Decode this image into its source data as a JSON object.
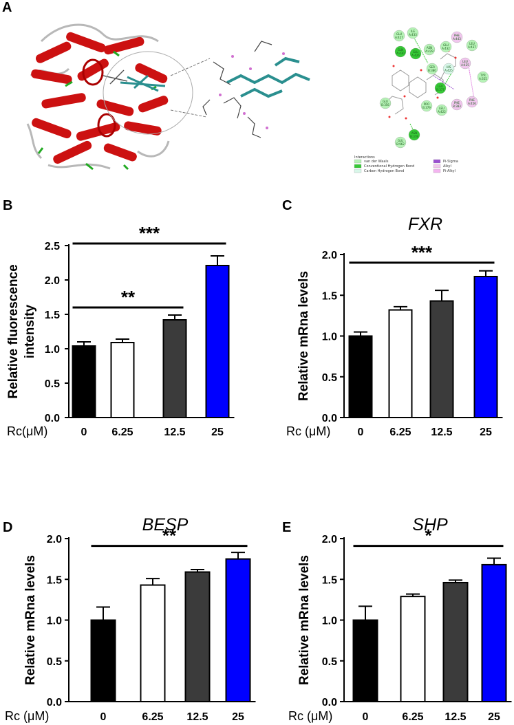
{
  "panel_a": {
    "letter": "A",
    "legend": {
      "title": "Interactions",
      "items": [
        {
          "label": "van der Waals",
          "color": "#b6f2b6"
        },
        {
          "label": "Conventional Hydrogen Bond",
          "color": "#36c936"
        },
        {
          "label": "Carbon Hydrogen Bond",
          "color": "#d8f7e9"
        },
        {
          "label": "Pi-Sigma",
          "color": "#9b4fd1"
        },
        {
          "label": "Alkyl",
          "color": "#f1c6ee"
        },
        {
          "label": "Pi-Alkyl",
          "color": "#f4b4f0"
        }
      ]
    },
    "residues": [
      {
        "label": "GLU A:427",
        "color": "#b6f2b6"
      },
      {
        "label": "ILE A:433",
        "color": "#b6f2b6"
      },
      {
        "label": "GLN A:430",
        "color": "#36c936"
      },
      {
        "label": "GLU A:426",
        "color": "#36c936"
      },
      {
        "label": "ASN A:429",
        "color": "#b6f2b6"
      },
      {
        "label": "GLU A:432",
        "color": "#b6f2b6"
      },
      {
        "label": "PHE A:443",
        "color": "#f1c6ee"
      },
      {
        "label": "LEU A:437",
        "color": "#b6f2b6"
      },
      {
        "label": "SER B:380",
        "color": "#b6f2b6"
      },
      {
        "label": "HIS A:425",
        "color": "#d8f7e9"
      },
      {
        "label": "LEU A:425",
        "color": "#f1c6ee"
      },
      {
        "label": "TYR A:355",
        "color": "#b6f2b6"
      },
      {
        "label": "LEU B:377",
        "color": "#36c936"
      },
      {
        "label": "PHE B:383",
        "color": "#f1c6ee"
      },
      {
        "label": "PHE A:456",
        "color": "#f1c6ee"
      },
      {
        "label": "LEU A:422",
        "color": "#b6f2b6"
      },
      {
        "label": "PRO B:379",
        "color": "#b6f2b6"
      },
      {
        "label": "ASN B:378",
        "color": "#36c936"
      },
      {
        "label": "GLU B:962",
        "color": "#b6f2b6"
      },
      {
        "label": "GLU B:356",
        "color": "#b6f2b6"
      }
    ]
  },
  "chart_data": [
    {
      "panel": "B",
      "type": "bar",
      "title": "",
      "xlabel": "Rc(μM)",
      "ylabel": "Relative fluorescence intensity",
      "ylabel_lines": [
        "Relative fluorescence",
        "intensity"
      ],
      "categories": [
        "0",
        "6.25",
        "12.5",
        "25"
      ],
      "values": [
        1.04,
        1.09,
        1.42,
        2.21
      ],
      "errors": [
        0.06,
        0.05,
        0.07,
        0.14
      ],
      "colors": [
        "#000000",
        "#ffffff",
        "#3b3b3b",
        "#0000ff"
      ],
      "ylim": [
        0,
        2.5
      ],
      "yticks": [
        "0.0",
        "0.5",
        "1.0",
        "1.5",
        "2.0",
        "2.5"
      ],
      "significance": [
        {
          "from": 0,
          "to": 2,
          "label": "**",
          "y": 1.6
        },
        {
          "from": 0,
          "to": 3,
          "label": "***",
          "y": 2.53
        }
      ]
    },
    {
      "panel": "C",
      "type": "bar",
      "title": "FXR",
      "xlabel": "Rc (μM)",
      "ylabel": "Relative mRna levels",
      "ylabel_lines": [
        "Relative mRna levels"
      ],
      "categories": [
        "0",
        "6.25",
        "12.5",
        "25"
      ],
      "values": [
        1.0,
        1.32,
        1.43,
        1.73
      ],
      "errors": [
        0.05,
        0.04,
        0.13,
        0.07
      ],
      "colors": [
        "#000000",
        "#ffffff",
        "#3b3b3b",
        "#0000ff"
      ],
      "ylim": [
        0,
        2.0
      ],
      "yticks": [
        "0.0",
        "0.5",
        "1.0",
        "1.5",
        "2.0"
      ],
      "significance": [
        {
          "from": 0,
          "to": 3,
          "label": "***",
          "y": 1.9
        }
      ]
    },
    {
      "panel": "D",
      "type": "bar",
      "title": "BESP",
      "xlabel": "Rc (μM)",
      "ylabel": "Relative mRna levels",
      "ylabel_lines": [
        "Relative mRna levels"
      ],
      "categories": [
        "0",
        "6.25",
        "12.5",
        "25"
      ],
      "values": [
        1.0,
        1.43,
        1.59,
        1.75
      ],
      "errors": [
        0.16,
        0.08,
        0.03,
        0.08
      ],
      "colors": [
        "#000000",
        "#ffffff",
        "#3b3b3b",
        "#0000ff"
      ],
      "ylim": [
        0,
        2.0
      ],
      "yticks": [
        "0.0",
        "0.5",
        "1.0",
        "1.5",
        "2.0"
      ],
      "significance": [
        {
          "from": 0,
          "to": 3,
          "label": "**",
          "y": 1.91
        }
      ]
    },
    {
      "panel": "E",
      "type": "bar",
      "title": "SHP",
      "xlabel": "Rc (μM)",
      "ylabel": "Relative mRna levels",
      "ylabel_lines": [
        "Relative mRna levels"
      ],
      "categories": [
        "0",
        "6.25",
        "12.5",
        "25"
      ],
      "values": [
        1.0,
        1.29,
        1.46,
        1.68
      ],
      "errors": [
        0.17,
        0.03,
        0.03,
        0.08
      ],
      "colors": [
        "#000000",
        "#ffffff",
        "#3b3b3b",
        "#0000ff"
      ],
      "ylim": [
        0,
        2.0
      ],
      "yticks": [
        "0.0",
        "0.5",
        "1.0",
        "1.5",
        "2.0"
      ],
      "significance": [
        {
          "from": 0,
          "to": 3,
          "label": "*",
          "y": 1.91
        }
      ]
    }
  ]
}
